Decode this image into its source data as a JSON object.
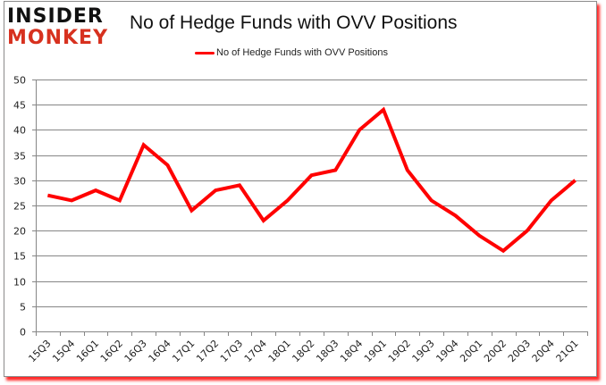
{
  "logo": {
    "line1": "INSIDER",
    "line2": "MONKEY"
  },
  "title": "No of Hedge Funds with OVV Positions",
  "legend": {
    "label": "No of Hedge Funds with OVV Positions",
    "color": "#ff0000"
  },
  "colors": {
    "line": "#ff0000",
    "grid": "#868686",
    "frame_shadow": "#ff0000",
    "logo_red": "#d7311f"
  },
  "chart_data": {
    "type": "line",
    "title": "No of Hedge Funds with OVV Positions",
    "xlabel": "",
    "ylabel": "",
    "ylim": [
      0,
      50
    ],
    "yticks": [
      0,
      5,
      10,
      15,
      20,
      25,
      30,
      35,
      40,
      45,
      50
    ],
    "grid": true,
    "legend_position": "top",
    "categories": [
      "15Q3",
      "15Q4",
      "16Q1",
      "16Q2",
      "16Q3",
      "16Q4",
      "17Q1",
      "17Q2",
      "17Q3",
      "17Q4",
      "18Q1",
      "18Q2",
      "18Q3",
      "18Q4",
      "19Q1",
      "19Q2",
      "19Q3",
      "19Q4",
      "20Q1",
      "20Q2",
      "20Q3",
      "20Q4",
      "21Q1"
    ],
    "series": [
      {
        "name": "No of Hedge Funds with OVV Positions",
        "values": [
          27,
          26,
          28,
          26,
          37,
          33,
          24,
          28,
          29,
          22,
          26,
          31,
          32,
          40,
          44,
          32,
          26,
          23,
          19,
          16,
          20,
          26,
          30
        ]
      }
    ]
  }
}
